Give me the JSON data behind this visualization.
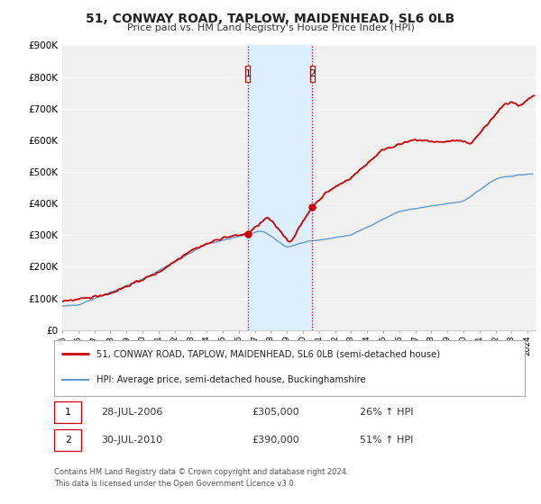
{
  "title": "51, CONWAY ROAD, TAPLOW, MAIDENHEAD, SL6 0LB",
  "subtitle": "Price paid vs. HM Land Registry's House Price Index (HPI)",
  "legend_line1": "51, CONWAY ROAD, TAPLOW, MAIDENHEAD, SL6 0LB (semi-detached house)",
  "legend_line2": "HPI: Average price, semi-detached house, Buckinghamshire",
  "footnote1": "Contains HM Land Registry data © Crown copyright and database right 2024.",
  "footnote2": "This data is licensed under the Open Government Licence v3.0.",
  "transaction1_date": "28-JUL-2006",
  "transaction1_price": "£305,000",
  "transaction1_hpi": "26% ↑ HPI",
  "transaction2_date": "30-JUL-2010",
  "transaction2_price": "£390,000",
  "transaction2_hpi": "51% ↑ HPI",
  "sale1_x": 2006.57,
  "sale1_y": 305000,
  "sale2_x": 2010.57,
  "sale2_y": 390000,
  "vline1_x": 2006.57,
  "vline2_x": 2010.57,
  "shade_x1": 2006.57,
  "shade_x2": 2010.57,
  "red_color": "#cc0000",
  "blue_color": "#6699cc",
  "shade_color": "#ddeeff",
  "background_color": "#f0f0f0",
  "ylim": [
    0,
    900000
  ],
  "xlim": [
    1995,
    2024.5
  ],
  "yticks": [
    0,
    100000,
    200000,
    300000,
    400000,
    500000,
    600000,
    700000,
    800000,
    900000
  ],
  "ytick_labels": [
    "£0",
    "£100K",
    "£200K",
    "£300K",
    "£400K",
    "£500K",
    "£600K",
    "£700K",
    "£800K",
    "£900K"
  ]
}
